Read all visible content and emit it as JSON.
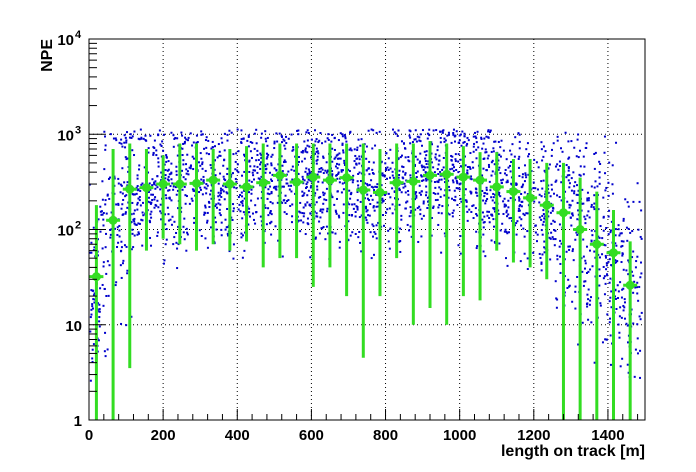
{
  "chart_data": {
    "type": "scatter",
    "title": "",
    "xlabel": "length on track [m]",
    "ylabel": "NPE",
    "xlim": [
      0,
      1500
    ],
    "ylim": [
      1,
      10000
    ],
    "yscale": "log",
    "grid": true,
    "x_ticks": [
      "0",
      "200",
      "400",
      "600",
      "800",
      "1000",
      "1200",
      "1400"
    ],
    "y_ticks": [
      {
        "value": 1,
        "label": "1"
      },
      {
        "value": 10,
        "label": "10"
      },
      {
        "value": 100,
        "label": "10",
        "exp": "2"
      },
      {
        "value": 1000,
        "label": "10",
        "exp": "3"
      },
      {
        "value": 10000,
        "label": "10",
        "exp": "4"
      }
    ],
    "colors": {
      "scatter": "#0000cc",
      "profile": "#33dd22"
    },
    "profile": {
      "x": [
        20,
        65,
        110,
        155,
        200,
        245,
        290,
        335,
        380,
        425,
        470,
        515,
        560,
        605,
        650,
        695,
        740,
        785,
        830,
        875,
        920,
        965,
        1010,
        1055,
        1100,
        1145,
        1190,
        1235,
        1280,
        1325,
        1370,
        1415,
        1460
      ],
      "y": [
        32,
        125,
        265,
        275,
        300,
        300,
        305,
        330,
        300,
        280,
        310,
        370,
        315,
        355,
        330,
        350,
        260,
        245,
        310,
        320,
        370,
        380,
        355,
        330,
        280,
        250,
        215,
        180,
        150,
        100,
        70,
        57,
        26
      ],
      "y_low": [
        1,
        1,
        3.5,
        60,
        80,
        70,
        60,
        70,
        60,
        75,
        40,
        50,
        50,
        25,
        40,
        20,
        4.5,
        20,
        50,
        10,
        15,
        10,
        20,
        18,
        60,
        45,
        40,
        30,
        1,
        1,
        1,
        1,
        1
      ],
      "y_high": [
        180,
        700,
        800,
        700,
        600,
        800,
        800,
        700,
        700,
        750,
        800,
        800,
        800,
        800,
        800,
        800,
        800,
        700,
        800,
        800,
        850,
        800,
        750,
        650,
        650,
        550,
        550,
        500,
        500,
        350,
        250,
        160,
        75
      ]
    },
    "scatter_note": "blue points are a dense cloud of individual entries spread around the green profile"
  }
}
